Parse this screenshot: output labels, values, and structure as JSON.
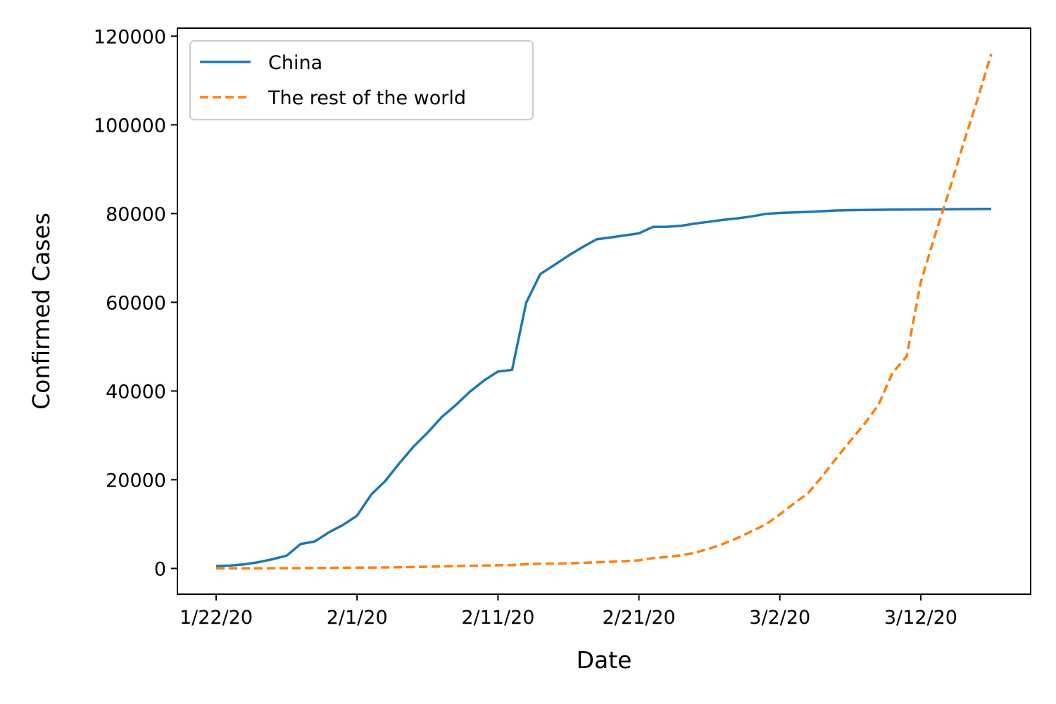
{
  "chart_data": {
    "type": "line",
    "title": "",
    "xlabel": "Date",
    "ylabel": "Confirmed Cases",
    "x": [
      "1/22/20",
      "1/23/20",
      "1/24/20",
      "1/25/20",
      "1/26/20",
      "1/27/20",
      "1/28/20",
      "1/29/20",
      "1/30/20",
      "1/31/20",
      "2/1/20",
      "2/2/20",
      "2/3/20",
      "2/4/20",
      "2/5/20",
      "2/6/20",
      "2/7/20",
      "2/8/20",
      "2/9/20",
      "2/10/20",
      "2/11/20",
      "2/12/20",
      "2/13/20",
      "2/14/20",
      "2/15/20",
      "2/16/20",
      "2/17/20",
      "2/18/20",
      "2/19/20",
      "2/20/20",
      "2/21/20",
      "2/22/20",
      "2/23/20",
      "2/24/20",
      "2/25/20",
      "2/26/20",
      "2/27/20",
      "2/28/20",
      "2/29/20",
      "3/1/20",
      "3/2/20",
      "3/3/20",
      "3/4/20",
      "3/5/20",
      "3/6/20",
      "3/7/20",
      "3/8/20",
      "3/9/20",
      "3/10/20",
      "3/11/20",
      "3/12/20",
      "3/13/20",
      "3/14/20",
      "3/15/20",
      "3/16/20",
      "3/17/20"
    ],
    "xticks": [
      "1/22/20",
      "2/1/20",
      "2/11/20",
      "2/21/20",
      "3/2/20",
      "3/12/20"
    ],
    "yticks": [
      0,
      20000,
      40000,
      60000,
      80000,
      100000,
      120000
    ],
    "ylim": [
      -5800,
      121800
    ],
    "grid": false,
    "legend_position": "top-left",
    "series": [
      {
        "name": "China",
        "color": "#1f77b4",
        "style": "solid",
        "values": [
          548,
          643,
          920,
          1406,
          2075,
          2877,
          5509,
          6087,
          8141,
          9802,
          11891,
          16630,
          19716,
          23707,
          27440,
          30587,
          34110,
          36814,
          39829,
          42354,
          44386,
          44759,
          59895,
          66358,
          68413,
          70513,
          72434,
          74211,
          74619,
          75077,
          75550,
          77001,
          77022,
          77241,
          77754,
          78166,
          78600,
          78928,
          79356,
          79932,
          80136,
          80261,
          80386,
          80537,
          80690,
          80770,
          80823,
          80860,
          80887,
          80921,
          80932,
          80945,
          80977,
          81003,
          81033,
          81058
        ]
      },
      {
        "name": "The rest of the world",
        "color": "#ff7f0e",
        "style": "dashed",
        "values": [
          7,
          11,
          21,
          28,
          43,
          50,
          72,
          92,
          137,
          148,
          174,
          194,
          235,
          273,
          336,
          388,
          452,
          535,
          583,
          662,
          731,
          751,
          958,
          1070,
          1081,
          1171,
          1264,
          1387,
          1510,
          1640,
          1837,
          2324,
          2605,
          2950,
          3576,
          4455,
          5570,
          6878,
          8389,
          9911,
          12179,
          14640,
          16970,
          20716,
          24818,
          28749,
          32568,
          36869,
          44116,
          47800,
          64510,
          75000,
          85000,
          95500,
          105500,
          116000
        ]
      }
    ]
  }
}
